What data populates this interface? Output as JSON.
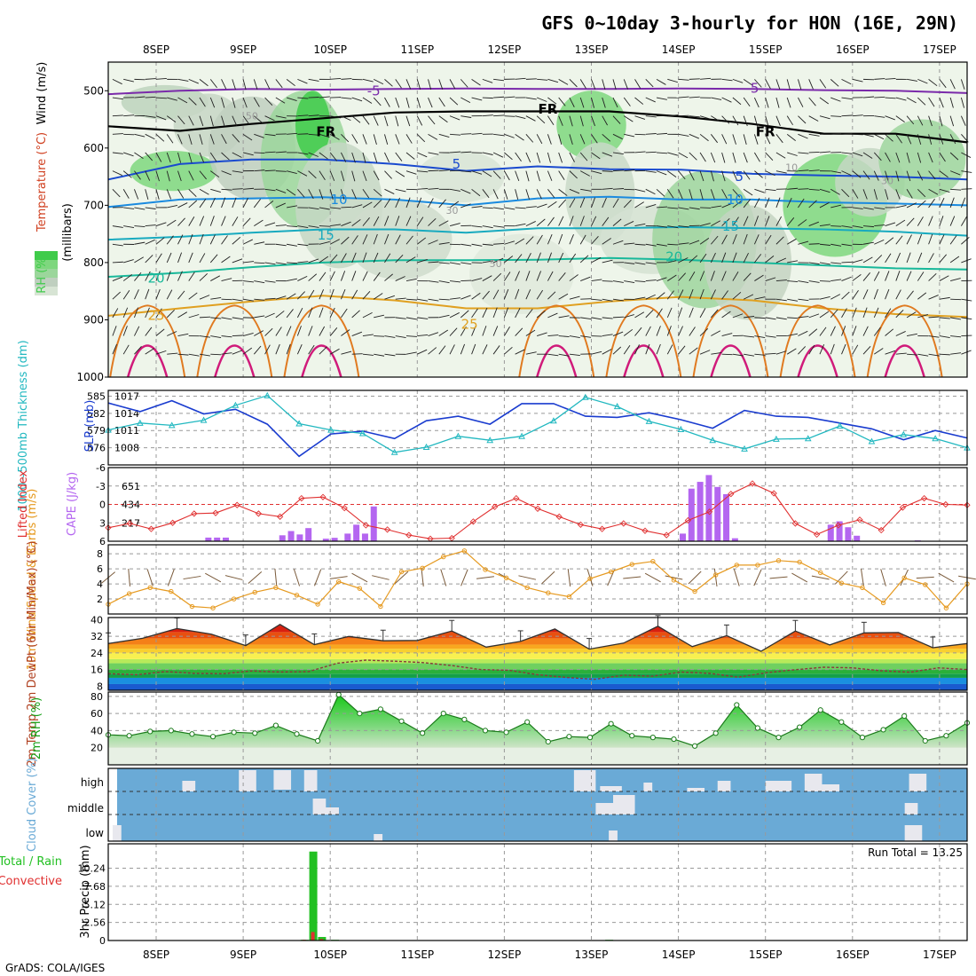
{
  "title": "GFS 0~10day 3-hourly for HON (16E, 29N)",
  "footer": "GrADS: COLA/IGES",
  "colors": {
    "rh": "#3fcb4a",
    "slp": "#1a3ccf",
    "thickness": "#22b8c0",
    "lifted_index": "#e03030",
    "cape": "#b466f0",
    "wind_speed": "#e69a20",
    "wind_barb": "#7a5a3a",
    "dewpoint": "#8a3a3a",
    "rh2m": "#16a016",
    "cloud": "#6aaad6",
    "cloud_fill": "#e8e8ee",
    "precip_total": "#22c022",
    "precip_conv": "#e03030"
  },
  "chart_data": [
    {
      "panel": "upper-air",
      "type": "heatmap",
      "title": "GFS 0~10day 3-hourly for HON (16E, 29N)",
      "x_labels": [
        "8SEP",
        "9SEP",
        "10SEP",
        "11SEP",
        "12SEP",
        "13SEP",
        "14SEP",
        "15SEP",
        "16SEP",
        "17SEP"
      ],
      "ylabel": "(millibars)",
      "y_ticks": [
        500,
        600,
        700,
        800,
        900,
        1000
      ],
      "ylim": [
        450,
        1000
      ],
      "side_labels": [
        "RH (%)",
        "Temperature (°C)",
        "Wind (m/s)"
      ],
      "isotherm_labels": [
        {
          "text": "-5",
          "day": 2.5,
          "p": 500,
          "color": "#7a2aaa"
        },
        {
          "text": "-5",
          "day": 6.85,
          "p": 496,
          "color": "#7a2aaa"
        },
        {
          "text": "FR",
          "day": 1.95,
          "p": 572,
          "color": "#000000"
        },
        {
          "text": "FR",
          "day": 4.5,
          "p": 532,
          "color": "#000000"
        },
        {
          "text": "FR",
          "day": 7.0,
          "p": 572,
          "color": "#000000"
        },
        {
          "text": "5",
          "day": 3.45,
          "p": 628,
          "color": "#1a4acf"
        },
        {
          "text": "5",
          "day": 6.7,
          "p": 650,
          "color": "#1a4acf"
        },
        {
          "text": "10",
          "day": 2.1,
          "p": 690,
          "color": "#1a8adf"
        },
        {
          "text": "10",
          "day": 6.65,
          "p": 690,
          "color": "#1a8adf"
        },
        {
          "text": "15",
          "day": 1.95,
          "p": 752,
          "color": "#18aabf"
        },
        {
          "text": "15",
          "day": 6.6,
          "p": 737,
          "color": "#18aabf"
        },
        {
          "text": "20",
          "day": 0.0,
          "p": 827,
          "color": "#18b89a"
        },
        {
          "text": "20",
          "day": 5.95,
          "p": 790,
          "color": "#18b89a"
        },
        {
          "text": "25",
          "day": 0.0,
          "p": 892,
          "color": "#e0a020"
        },
        {
          "text": "25",
          "day": 3.6,
          "p": 908,
          "color": "#e0a020"
        }
      ],
      "rh_contour_labels": [
        "50",
        "30",
        "50",
        "10",
        "30"
      ],
      "isotherms": [
        {
          "label": "-5",
          "color": "#7a2aaa",
          "p": [
            506,
            500,
            497,
            498,
            497,
            496,
            497,
            497,
            496,
            497,
            499,
            500,
            504
          ]
        },
        {
          "label": "FR",
          "color": "#000000",
          "p": [
            562,
            570,
            558,
            548,
            538,
            536,
            536,
            536,
            545,
            558,
            575,
            575,
            590
          ]
        },
        {
          "label": "5",
          "color": "#1a4acf",
          "p": [
            655,
            628,
            620,
            620,
            628,
            640,
            632,
            637,
            638,
            645,
            648,
            650,
            655
          ]
        },
        {
          "label": "10",
          "color": "#1a8adf",
          "p": [
            703,
            690,
            688,
            686,
            690,
            700,
            688,
            685,
            690,
            690,
            695,
            697,
            700
          ]
        },
        {
          "label": "15",
          "color": "#18aabf",
          "p": [
            760,
            755,
            748,
            742,
            742,
            748,
            740,
            740,
            738,
            740,
            742,
            746,
            753
          ]
        },
        {
          "label": "20",
          "color": "#18b89a",
          "p": [
            825,
            818,
            808,
            800,
            796,
            796,
            795,
            792,
            795,
            800,
            805,
            810,
            812
          ]
        },
        {
          "label": "25",
          "color": "#e0a020",
          "p": [
            893,
            880,
            868,
            858,
            866,
            880,
            880,
            868,
            860,
            866,
            880,
            890,
            895
          ]
        }
      ]
    },
    {
      "panel": "slp-thickness",
      "type": "line",
      "ylabel_left": "1000~500mb Thickness (dm)",
      "ylabel_right": "SLP (mb)",
      "y_ticks_left": [
        "585",
        "582",
        "579",
        "576"
      ],
      "y_ticks_right": [
        "1017",
        "1014",
        "1011",
        "1008"
      ],
      "ylim": [
        1005,
        1018
      ],
      "series": [
        {
          "name": "SLP (mb)",
          "unit": "mb",
          "values": [
            1015.8,
            1014.3,
            1016.2,
            1013.9,
            1014.7,
            1012.1,
            1006.5,
            1010.4,
            1010.9,
            1009.6,
            1012.7,
            1013.5,
            1012.1,
            1015.7,
            1015.7,
            1013.5,
            1013.3,
            1014.1,
            1012.9,
            1011.4,
            1014.5,
            1013.5,
            1013.3,
            1012.3,
            1011.3,
            1009.4,
            1011.0,
            1009.7
          ]
        },
        {
          "name": "1000~500mb Thickness (dm)",
          "unit": "dm",
          "values": [
            1011.1,
            1012.3,
            1011.9,
            1012.8,
            1015.4,
            1017.1,
            1012.2,
            1011.1,
            1010.5,
            1007.2,
            1008.1,
            1010.0,
            1009.3,
            1010.0,
            1012.7,
            1016.8,
            1015.2,
            1012.6,
            1011.2,
            1009.3,
            1007.8,
            1009.5,
            1009.6,
            1011.8,
            1009.1,
            1010.3,
            1009.6,
            1008.0
          ]
        }
      ]
    },
    {
      "panel": "li-cape",
      "type": "bar",
      "ylabel_left": "Lifted Index",
      "ylabel_right": "CAPE (J/kg)",
      "y_ticks_left": [
        "-6",
        "-3",
        "0",
        "3",
        "6"
      ],
      "y_ticks_right": [
        "651",
        "434",
        "217"
      ],
      "ylim_li": [
        -6,
        6
      ],
      "ylim_cape": [
        0,
        868
      ],
      "lifted_index": [
        3.8,
        3.1,
        4.0,
        3.0,
        1.5,
        1.4,
        0.1,
        1.5,
        2.0,
        -1.0,
        -1.2,
        0.6,
        3.4,
        4.1,
        5.0,
        5.6,
        5.5,
        2.8,
        0.4,
        -1.0,
        0.7,
        2.0,
        3.3,
        4.0,
        3.1,
        4.3,
        5.0,
        2.6,
        1.2,
        -1.7,
        -3.4,
        -1.8,
        3.1,
        4.9,
        3.4,
        2.5,
        4.2,
        0.5,
        -1.0,
        0.0,
        0.1
      ],
      "cape_bars": [
        {
          "day": -0.45,
          "v": 0
        },
        {
          "day": 0.6,
          "v": 43
        },
        {
          "day": 0.7,
          "v": 43
        },
        {
          "day": 0.8,
          "v": 43
        },
        {
          "day": 1.45,
          "v": 70
        },
        {
          "day": 1.55,
          "v": 120
        },
        {
          "day": 1.65,
          "v": 80
        },
        {
          "day": 1.75,
          "v": 155
        },
        {
          "day": 1.95,
          "v": 30
        },
        {
          "day": 2.05,
          "v": 40
        },
        {
          "day": 2.2,
          "v": 90
        },
        {
          "day": 2.3,
          "v": 195
        },
        {
          "day": 2.4,
          "v": 90
        },
        {
          "day": 2.5,
          "v": 410
        },
        {
          "day": 6.05,
          "v": 90
        },
        {
          "day": 6.15,
          "v": 620
        },
        {
          "day": 6.25,
          "v": 700
        },
        {
          "day": 6.35,
          "v": 780
        },
        {
          "day": 6.45,
          "v": 640
        },
        {
          "day": 6.55,
          "v": 555
        },
        {
          "day": 6.65,
          "v": 35
        },
        {
          "day": 7.75,
          "v": 195
        },
        {
          "day": 7.85,
          "v": 235
        },
        {
          "day": 7.95,
          "v": 165
        },
        {
          "day": 8.05,
          "v": 65
        },
        {
          "day": 8.75,
          "v": 10
        }
      ]
    },
    {
      "panel": "10m-wind",
      "type": "line",
      "ylabel": "10m Wind Speed & Barbs (m/s)",
      "y_ticks": [
        "8",
        "6",
        "4",
        "2"
      ],
      "ylim": [
        0,
        9.2
      ],
      "values": [
        1.3,
        2.7,
        3.5,
        3.0,
        1.0,
        0.8,
        2.0,
        2.9,
        3.5,
        2.5,
        1.3,
        4.3,
        3.4,
        1.0,
        5.6,
        6.1,
        7.6,
        8.4,
        5.9,
        4.8,
        3.5,
        2.8,
        2.3,
        4.7,
        5.6,
        6.6,
        7.0,
        4.5,
        3.0,
        5.2,
        6.5,
        6.5,
        7.1,
        6.9,
        5.5,
        4.1,
        3.5,
        1.5,
        4.8,
        3.9,
        0.8,
        4.0
      ]
    },
    {
      "panel": "2m-temp",
      "type": "area",
      "ylabel": "2m Temp 2m DewPt (6hr Min/Max) (°C)",
      "y_ticks": [
        "40",
        "32",
        "24",
        "16",
        "8"
      ],
      "ylim": [
        6,
        41
      ],
      "temp_values": [
        28.5,
        31,
        35.7,
        33,
        27.5,
        37.7,
        28,
        31.9,
        29.8,
        30,
        34.5,
        26.8,
        29.5,
        35.5,
        25.8,
        28.7,
        36.8,
        27,
        32.3,
        24.8,
        34.5,
        27.8,
        33.6,
        33.8,
        26.5,
        28.5
      ],
      "dewpoint_values": [
        14,
        13.5,
        15,
        14.2,
        14,
        15.3,
        14.8,
        15,
        19,
        20.5,
        20,
        19.3,
        17.9,
        16,
        15.6,
        13.5,
        12.2,
        11.3,
        13.3,
        12.8,
        14.8,
        14.2,
        12.3,
        14.5,
        15.9,
        17.1,
        16.8,
        15.4,
        14.7,
        16.8,
        16
      ]
    },
    {
      "panel": "2m-rh",
      "type": "area",
      "ylabel": "2m RH (%)",
      "y_ticks": [
        "80",
        "60",
        "40",
        "20"
      ],
      "ylim": [
        0,
        85
      ],
      "values": [
        35,
        34,
        39,
        40,
        36,
        33,
        38,
        37,
        46,
        36,
        28,
        82,
        60,
        65,
        51,
        37,
        60,
        53,
        40,
        38,
        50,
        27,
        33,
        32,
        48,
        34,
        32,
        30,
        22,
        37,
        70,
        43,
        32,
        44,
        64,
        50,
        32,
        41,
        57,
        28,
        34,
        49
      ]
    },
    {
      "panel": "cloud-cover",
      "type": "heatmap",
      "ylabel": "Cloud Cover (%)",
      "row_labels": [
        "high",
        "middle",
        "low"
      ]
    },
    {
      "panel": "precip",
      "type": "bar",
      "ylabel": "3hr Precip (mm)",
      "legend": [
        "Total / Rain",
        "Convective"
      ],
      "y_ticks": [
        "10.24",
        "7.68",
        "5.12",
        "2.56",
        "0"
      ],
      "ylim": [
        0,
        13.7
      ],
      "annotation": "Run Total = 13.25",
      "bars": [
        {
          "day": 1.7,
          "total": 0.1,
          "conv": 0.1
        },
        {
          "day": 1.8,
          "total": 12.6,
          "conv": 1.2
        },
        {
          "day": 1.9,
          "total": 0.5,
          "conv": 0.2
        },
        {
          "day": 2.05,
          "total": 0.1,
          "conv": 0.0
        },
        {
          "day": 5.2,
          "total": 0.1,
          "conv": 0.0
        }
      ]
    }
  ]
}
